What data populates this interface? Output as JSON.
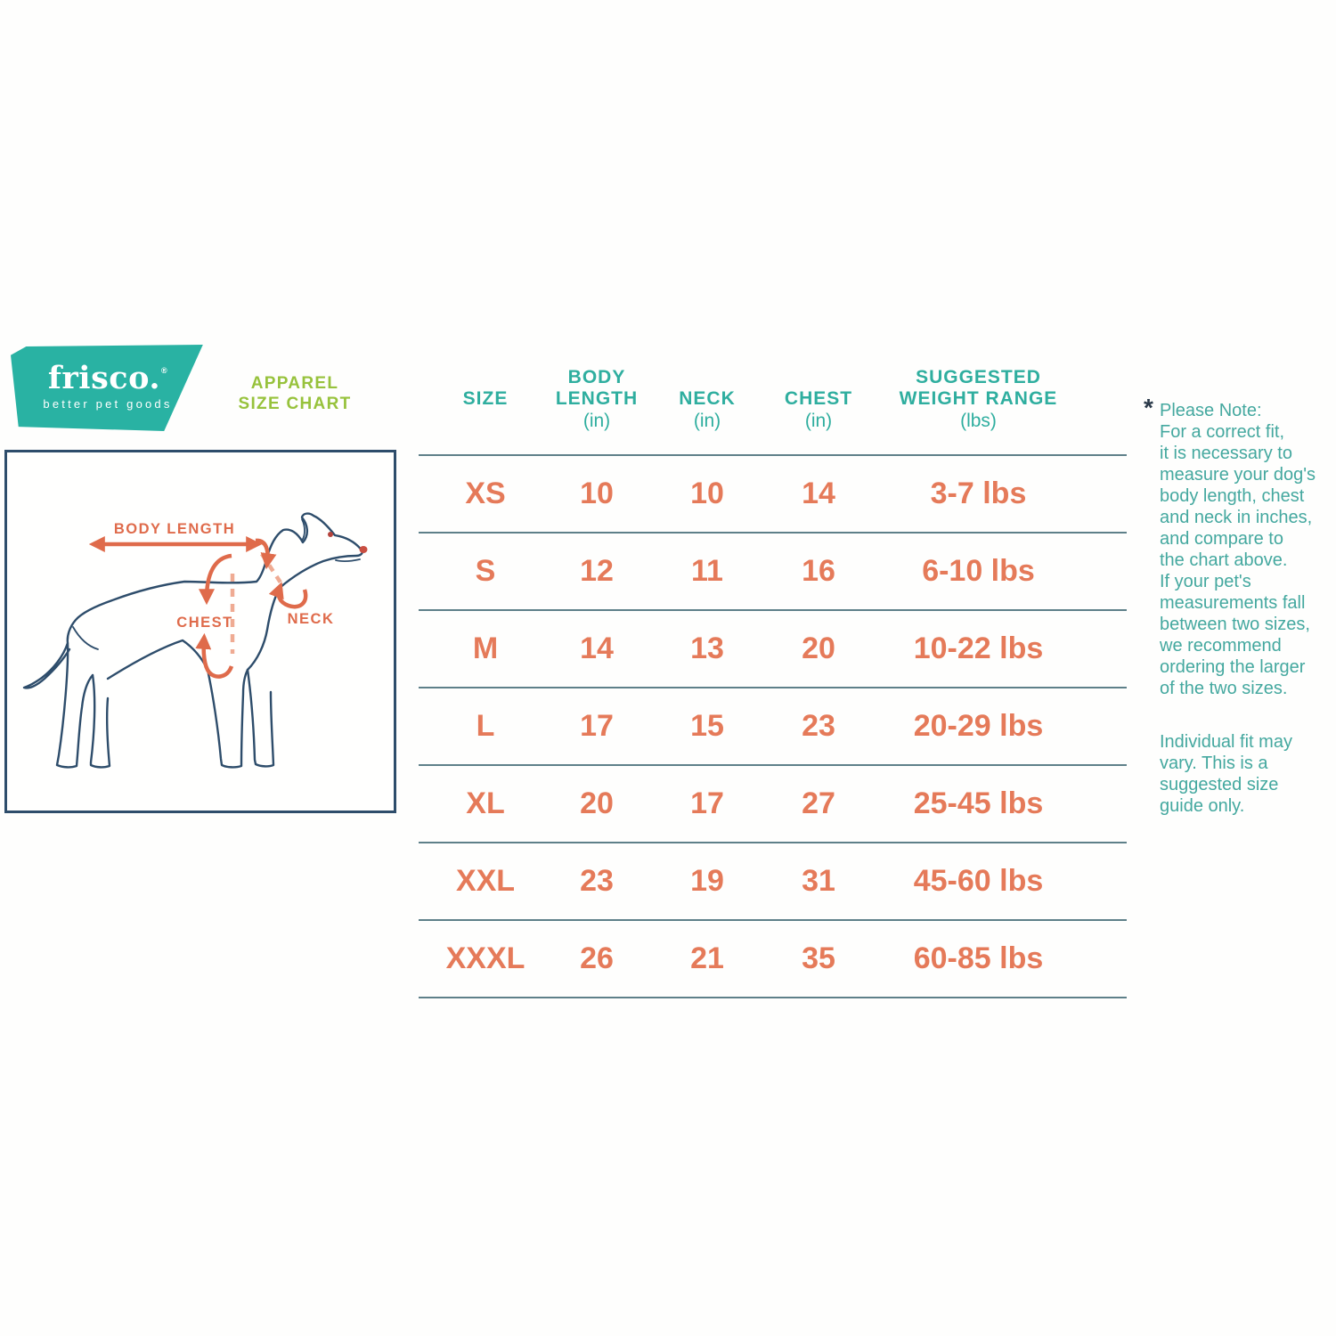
{
  "logo": {
    "brand": "frisco.",
    "registered": "®",
    "tagline": "better pet goods"
  },
  "title": {
    "line1": "APPAREL",
    "line2": "SIZE CHART"
  },
  "diagram": {
    "body_length_label": "BODY LENGTH",
    "chest_label": "CHEST",
    "neck_label": "NECK"
  },
  "table": {
    "columns": [
      {
        "top": "",
        "main": "SIZE",
        "sub": ""
      },
      {
        "top": "BODY",
        "main": "LENGTH",
        "sub": "(in)"
      },
      {
        "top": "",
        "main": "NECK",
        "sub": "(in)"
      },
      {
        "top": "",
        "main": "CHEST",
        "sub": "(in)"
      },
      {
        "top": "SUGGESTED",
        "main": "WEIGHT RANGE",
        "sub": "(lbs)"
      }
    ],
    "rows": [
      {
        "size": "XS",
        "body_length": "10",
        "neck": "10",
        "chest": "14",
        "weight": "3-7 lbs"
      },
      {
        "size": "S",
        "body_length": "12",
        "neck": "11",
        "chest": "16",
        "weight": "6-10 lbs"
      },
      {
        "size": "M",
        "body_length": "14",
        "neck": "13",
        "chest": "20",
        "weight": "10-22 lbs"
      },
      {
        "size": "L",
        "body_length": "17",
        "neck": "15",
        "chest": "23",
        "weight": "20-29 lbs"
      },
      {
        "size": "XL",
        "body_length": "20",
        "neck": "17",
        "chest": "27",
        "weight": "25-45 lbs"
      },
      {
        "size": "XXL",
        "body_length": "23",
        "neck": "19",
        "chest": "31",
        "weight": "45-60 lbs"
      },
      {
        "size": "XXXL",
        "body_length": "26",
        "neck": "21",
        "chest": "35",
        "weight": "60-85 lbs"
      }
    ]
  },
  "note": {
    "asterisk": "*",
    "para1": "Please Note:\nFor a correct fit,\nit is necessary to\nmeasure your dog's\nbody length, chest\nand neck in inches,\nand compare to\nthe chart above.\nIf your pet's\nmeasurements fall\nbetween two sizes,\nwe recommend\nordering the larger\nof the two sizes.",
    "para2": "Individual fit may\nvary. This is a\nsuggested size\nguide only."
  },
  "colors": {
    "logo_teal": "#29b2a3",
    "header_teal": "#2fae9f",
    "note_teal": "#44a89f",
    "table_orange": "#e57a59",
    "diagram_orange": "#df6b4b",
    "diagram_orange_light": "#efab93",
    "title_green": "#97c23c",
    "navy": "#2e4d6b",
    "separator": "#5e8089"
  }
}
